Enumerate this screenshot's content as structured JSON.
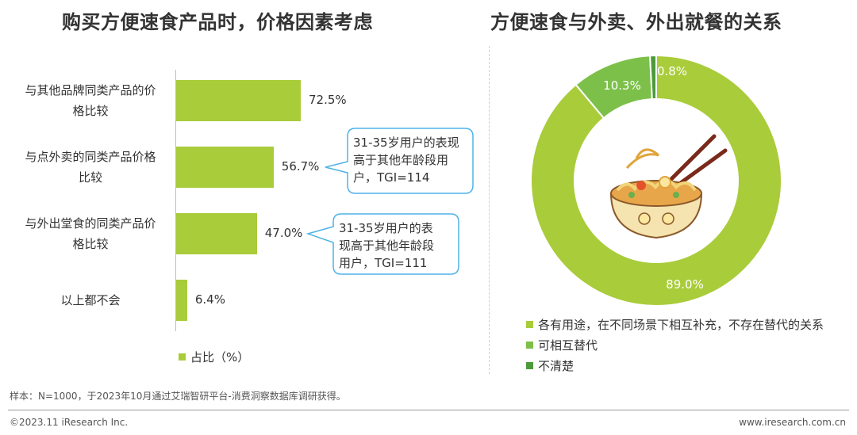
{
  "charts": {
    "left_title": "购买方便速食产品时，价格因素考虑",
    "right_title": "方便速食与外卖、外出就餐的关系"
  },
  "chart_data": [
    {
      "type": "bar",
      "orientation": "horizontal",
      "title": "购买方便速食产品时，价格因素考虑",
      "categories": [
        [
          "与其他品牌同类产品的价",
          "格比较"
        ],
        [
          "与点外卖的同类产品价格",
          "比较"
        ],
        [
          "与外出堂食的同类产品价",
          "格比较"
        ],
        [
          "以上都不会"
        ]
      ],
      "values": [
        72.5,
        56.7,
        47.0,
        6.4
      ],
      "value_labels": [
        "72.5%",
        "56.7%",
        "47.0%",
        "6.4%"
      ],
      "series": [
        {
          "name": "占比（%）",
          "values": [
            72.5,
            56.7,
            47.0,
            6.4
          ]
        }
      ],
      "legend": "bottom",
      "color": "#a9cc3a"
    },
    {
      "type": "pie",
      "style": "donut",
      "title": "方便速食与外卖、外出就餐的关系",
      "labels": [
        "各有用途，在不同场景下相互补充，不存在替代的关系",
        "可相互替代",
        "不清楚"
      ],
      "values": [
        89.0,
        10.3,
        0.8
      ],
      "value_labels": [
        "89.0%",
        "10.3%",
        "0.8%"
      ],
      "colors": [
        "#a9cc3a",
        "#7cc04a",
        "#4e9a3a"
      ],
      "legend": "bottom-left"
    }
  ],
  "callouts": [
    {
      "lines": [
        "31-35岁用户的表现",
        "高于其他年龄段用",
        "户，TGI=114"
      ]
    },
    {
      "lines": [
        "31-35岁用户的表",
        "现高于其他年龄段",
        "用户，TGI=111"
      ]
    }
  ],
  "callout_border_color": "#4fb3e8",
  "footnote": "样本：N=1000，于2023年10月通过艾瑞智研平台-消费洞察数据库调研获得。",
  "footer": {
    "copyright": "©2023.11 iResearch Inc.",
    "url": "www.iresearch.com.cn"
  }
}
